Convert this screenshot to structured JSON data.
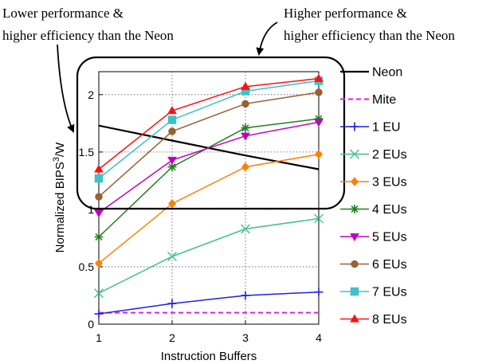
{
  "annotations": {
    "left_line1": "Lower performance &",
    "left_line2": "higher efficiency than the Neon",
    "right_line1": "Higher performance &",
    "right_line2": "higher efficiency than the Neon"
  },
  "chart_data": {
    "type": "line",
    "xlabel": "Instruction Buffers",
    "ylabel": "Normalized BIPS³/W",
    "ylabel_base": "Normalized BIPS",
    "ylabel_sup": "3",
    "ylabel_tail": "/W",
    "x": [
      1,
      2,
      3,
      4
    ],
    "xlim": [
      1,
      4
    ],
    "ylim": [
      0,
      2.2
    ],
    "xticks": [
      "1",
      "2",
      "3",
      "4"
    ],
    "yticks": [
      {
        "v": 0,
        "label": "0"
      },
      {
        "v": 0.5,
        "label": "0.5"
      },
      {
        "v": 1,
        "label": "1"
      },
      {
        "v": 1.5,
        "label": "1.5"
      },
      {
        "v": 2,
        "label": "2"
      }
    ],
    "grid": true,
    "legend_position": "right",
    "series": [
      {
        "name": "Neon",
        "values": [
          1.73,
          1.6,
          1.47,
          1.35
        ],
        "color": "#000000",
        "marker": "none",
        "dash": false,
        "width": 2.2
      },
      {
        "name": "Mite",
        "values": [
          0.1,
          0.1,
          0.1,
          0.1
        ],
        "color": "#e020e0",
        "marker": "none",
        "dash": true,
        "width": 2
      },
      {
        "name": "1 EU",
        "values": [
          0.09,
          0.18,
          0.25,
          0.28
        ],
        "color": "#2020e0",
        "marker": "plus",
        "dash": false,
        "width": 1.5
      },
      {
        "name": "2 EUs",
        "values": [
          0.27,
          0.59,
          0.83,
          0.92
        ],
        "color": "#40c090",
        "marker": "x",
        "dash": false,
        "width": 1.5
      },
      {
        "name": "3 EUs",
        "values": [
          0.53,
          1.05,
          1.37,
          1.48
        ],
        "color": "#ff8000",
        "marker": "diamond",
        "dash": false,
        "width": 1.5
      },
      {
        "name": "4 EUs",
        "values": [
          0.76,
          1.37,
          1.71,
          1.79
        ],
        "color": "#208020",
        "marker": "star",
        "dash": false,
        "width": 1.5
      },
      {
        "name": "5 EUs",
        "values": [
          0.97,
          1.43,
          1.64,
          1.76
        ],
        "color": "#c000c0",
        "marker": "tri-down",
        "dash": false,
        "width": 1.5
      },
      {
        "name": "6 EUs",
        "values": [
          1.11,
          1.68,
          1.92,
          2.02
        ],
        "color": "#9a6030",
        "marker": "circle",
        "dash": false,
        "width": 1.5
      },
      {
        "name": "7 EUs",
        "values": [
          1.27,
          1.78,
          2.03,
          2.12
        ],
        "color": "#40c0c8",
        "marker": "square",
        "dash": false,
        "width": 1.5
      },
      {
        "name": "8 EUs",
        "values": [
          1.35,
          1.86,
          2.07,
          2.14
        ],
        "color": "#ff1010",
        "marker": "tri-up",
        "dash": false,
        "width": 1.5
      }
    ]
  }
}
